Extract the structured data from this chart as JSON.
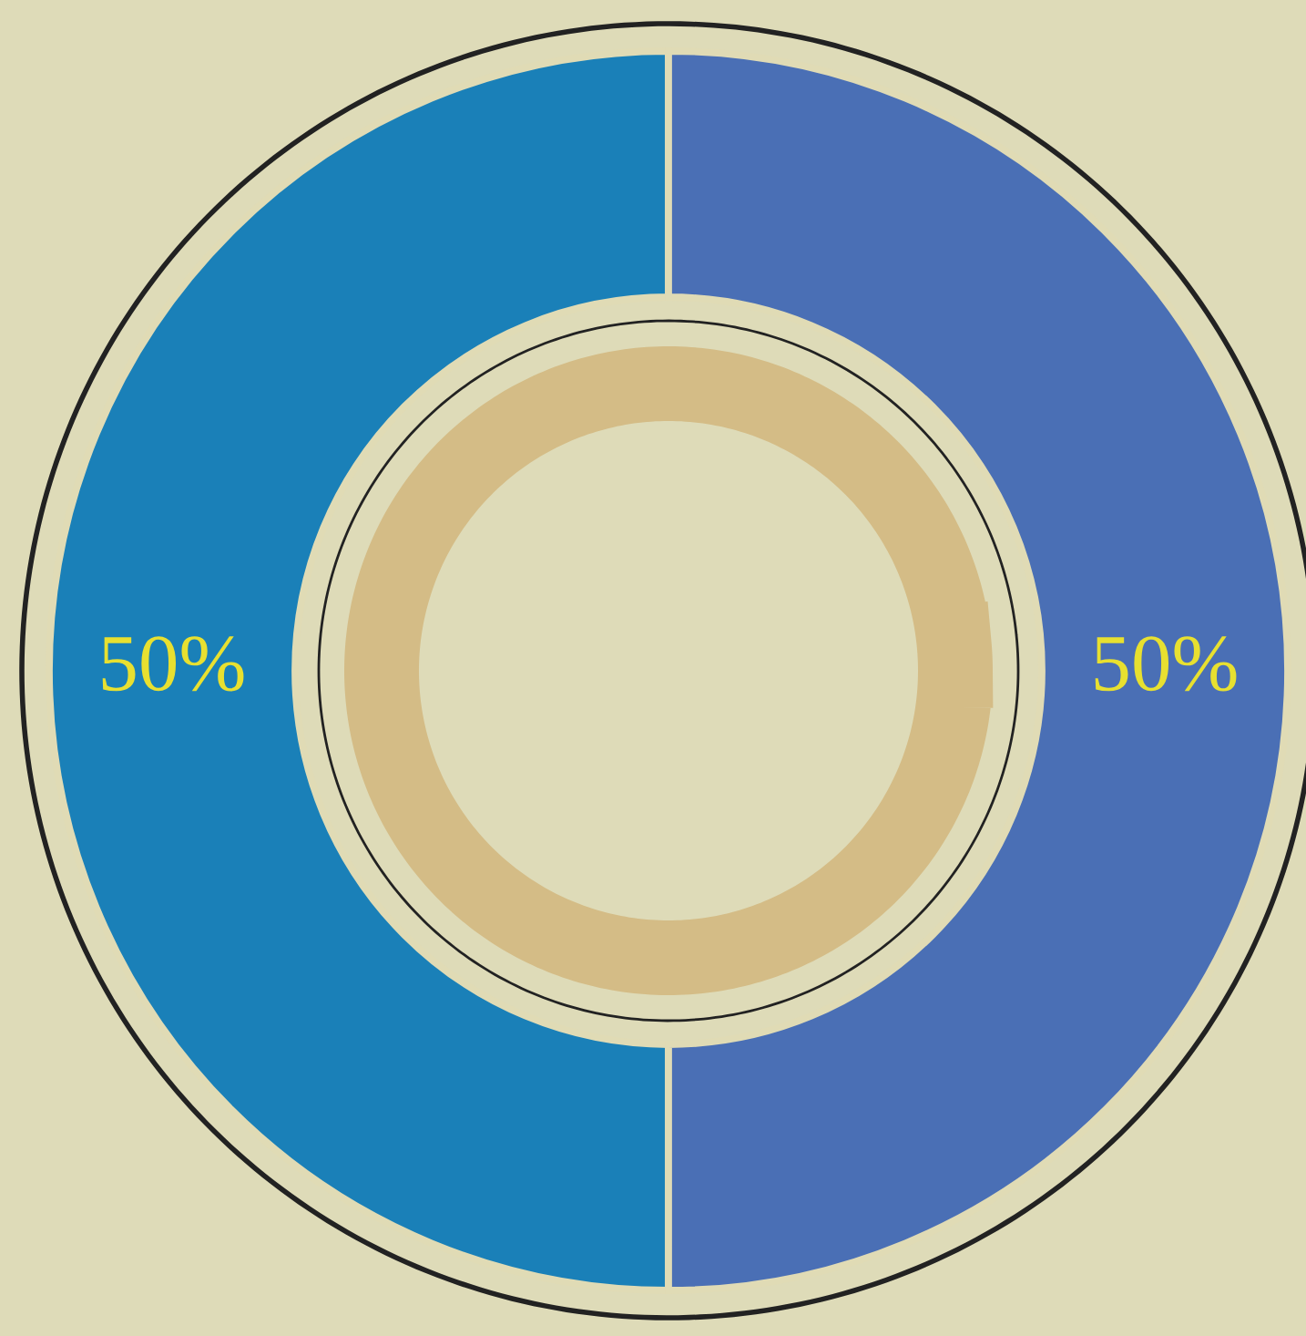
{
  "chart_data": {
    "type": "donut",
    "categories": [
      null,
      null
    ],
    "values": [
      50,
      50
    ],
    "colors": [
      "#1a80b8",
      "#4a6fb5"
    ],
    "value_labels": [
      "50%",
      "50%"
    ]
  }
}
